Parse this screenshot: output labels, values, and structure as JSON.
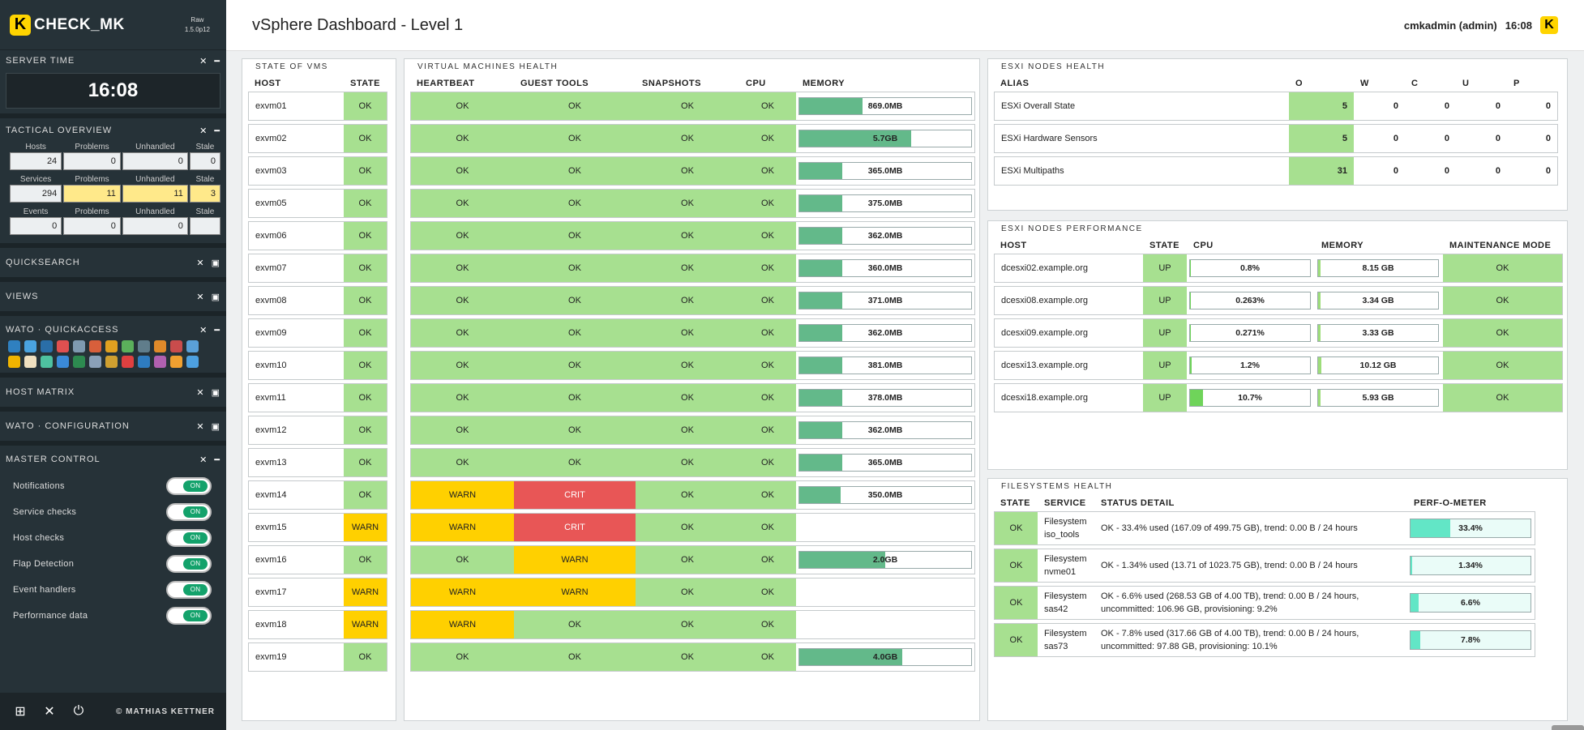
{
  "sidebar": {
    "logo_text": "CHECK_MK",
    "logo_letter": "K",
    "edition": "Raw",
    "version": "1.5.0p12",
    "server_time": {
      "title": "SERVER TIME",
      "value": "16:08"
    },
    "tactical": {
      "title": "TACTICAL OVERVIEW",
      "rows": [
        {
          "headers": [
            "Hosts",
            "Problems",
            "Unhandled",
            "Stale"
          ],
          "values": [
            "24",
            "0",
            "0",
            "0"
          ],
          "warn": [
            false,
            false,
            false,
            false
          ]
        },
        {
          "headers": [
            "Services",
            "Problems",
            "Unhandled",
            "Stale"
          ],
          "values": [
            "294",
            "11",
            "11",
            "3"
          ],
          "warn": [
            false,
            true,
            true,
            true
          ]
        },
        {
          "headers": [
            "Events",
            "Problems",
            "Unhandled",
            "Stale"
          ],
          "values": [
            "0",
            "0",
            "0",
            ""
          ],
          "warn": [
            false,
            false,
            false,
            false
          ]
        }
      ]
    },
    "quicksearch": "QUICKSEARCH",
    "views": "VIEWS",
    "wato_quickaccess": "WATO · QUICKACCESS",
    "host_matrix": "HOST MATRIX",
    "wato_configuration": "WATO · CONFIGURATION",
    "master_control": {
      "title": "MASTER CONTROL",
      "items": [
        {
          "label": "Notifications",
          "state": "ON"
        },
        {
          "label": "Service checks",
          "state": "ON"
        },
        {
          "label": "Host checks",
          "state": "ON"
        },
        {
          "label": "Flap Detection",
          "state": "ON"
        },
        {
          "label": "Event handlers",
          "state": "ON"
        },
        {
          "label": "Performance data",
          "state": "ON"
        }
      ]
    },
    "copyright": "© MATHIAS KETTNER"
  },
  "header": {
    "title": "vSphere Dashboard - Level 1",
    "user": "cmkadmin (admin)",
    "time": "16:08"
  },
  "state_of_vms": {
    "title": "STATE OF VMS",
    "columns": [
      "HOST",
      "STATE"
    ],
    "rows": [
      {
        "host": "exvm01",
        "state": "OK"
      },
      {
        "host": "exvm02",
        "state": "OK"
      },
      {
        "host": "exvm03",
        "state": "OK"
      },
      {
        "host": "exvm05",
        "state": "OK"
      },
      {
        "host": "exvm06",
        "state": "OK"
      },
      {
        "host": "exvm07",
        "state": "OK"
      },
      {
        "host": "exvm08",
        "state": "OK"
      },
      {
        "host": "exvm09",
        "state": "OK"
      },
      {
        "host": "exvm10",
        "state": "OK"
      },
      {
        "host": "exvm11",
        "state": "OK"
      },
      {
        "host": "exvm12",
        "state": "OK"
      },
      {
        "host": "exvm13",
        "state": "OK"
      },
      {
        "host": "exvm14",
        "state": "OK"
      },
      {
        "host": "exvm15",
        "state": "WARN"
      },
      {
        "host": "exvm16",
        "state": "OK"
      },
      {
        "host": "exvm17",
        "state": "WARN"
      },
      {
        "host": "exvm18",
        "state": "WARN"
      },
      {
        "host": "exvm19",
        "state": "OK"
      }
    ]
  },
  "vm_health": {
    "title": "VIRTUAL MACHINES HEALTH",
    "columns": [
      "HEARTBEAT",
      "GUEST TOOLS",
      "SNAPSHOTS",
      "CPU",
      "MEMORY"
    ],
    "rows": [
      {
        "heartbeat": "OK",
        "guest": "OK",
        "snapshots": "OK",
        "cpu": "OK",
        "memory": "869.0MB",
        "mem_fraction": 0.37
      },
      {
        "heartbeat": "OK",
        "guest": "OK",
        "snapshots": "OK",
        "cpu": "OK",
        "memory": "5.7GB",
        "mem_fraction": 0.65
      },
      {
        "heartbeat": "OK",
        "guest": "OK",
        "snapshots": "OK",
        "cpu": "OK",
        "memory": "365.0MB",
        "mem_fraction": 0.25
      },
      {
        "heartbeat": "OK",
        "guest": "OK",
        "snapshots": "OK",
        "cpu": "OK",
        "memory": "375.0MB",
        "mem_fraction": 0.25
      },
      {
        "heartbeat": "OK",
        "guest": "OK",
        "snapshots": "OK",
        "cpu": "OK",
        "memory": "362.0MB",
        "mem_fraction": 0.25
      },
      {
        "heartbeat": "OK",
        "guest": "OK",
        "snapshots": "OK",
        "cpu": "OK",
        "memory": "360.0MB",
        "mem_fraction": 0.25
      },
      {
        "heartbeat": "OK",
        "guest": "OK",
        "snapshots": "OK",
        "cpu": "OK",
        "memory": "371.0MB",
        "mem_fraction": 0.25
      },
      {
        "heartbeat": "OK",
        "guest": "OK",
        "snapshots": "OK",
        "cpu": "OK",
        "memory": "362.0MB",
        "mem_fraction": 0.25
      },
      {
        "heartbeat": "OK",
        "guest": "OK",
        "snapshots": "OK",
        "cpu": "OK",
        "memory": "381.0MB",
        "mem_fraction": 0.25
      },
      {
        "heartbeat": "OK",
        "guest": "OK",
        "snapshots": "OK",
        "cpu": "OK",
        "memory": "378.0MB",
        "mem_fraction": 0.25
      },
      {
        "heartbeat": "OK",
        "guest": "OK",
        "snapshots": "OK",
        "cpu": "OK",
        "memory": "362.0MB",
        "mem_fraction": 0.25
      },
      {
        "heartbeat": "OK",
        "guest": "OK",
        "snapshots": "OK",
        "cpu": "OK",
        "memory": "365.0MB",
        "mem_fraction": 0.25
      },
      {
        "heartbeat": "WARN",
        "guest": "CRIT",
        "snapshots": "OK",
        "cpu": "OK",
        "memory": "350.0MB",
        "mem_fraction": 0.24
      },
      {
        "heartbeat": "WARN",
        "guest": "CRIT",
        "snapshots": "OK",
        "cpu": "OK",
        "memory": "",
        "mem_fraction": 0
      },
      {
        "heartbeat": "OK",
        "guest": "WARN",
        "snapshots": "OK",
        "cpu": "OK",
        "memory": "2.0GB",
        "mem_fraction": 0.5
      },
      {
        "heartbeat": "WARN",
        "guest": "WARN",
        "snapshots": "OK",
        "cpu": "OK",
        "memory": "",
        "mem_fraction": 0
      },
      {
        "heartbeat": "WARN",
        "guest": "OK",
        "snapshots": "OK",
        "cpu": "OK",
        "memory": "",
        "mem_fraction": 0
      },
      {
        "heartbeat": "OK",
        "guest": "OK",
        "snapshots": "OK",
        "cpu": "OK",
        "memory": "4.0GB",
        "mem_fraction": 0.6
      }
    ]
  },
  "esxi_health": {
    "title": "ESXI NODES HEALTH",
    "columns": [
      "ALIAS",
      "O",
      "W",
      "C",
      "U",
      "P"
    ],
    "rows": [
      {
        "alias": "ESXi Overall State",
        "o": "5",
        "w": "0",
        "c": "0",
        "u": "0",
        "p": "0"
      },
      {
        "alias": "ESXi Hardware Sensors",
        "o": "5",
        "w": "0",
        "c": "0",
        "u": "0",
        "p": "0"
      },
      {
        "alias": "ESXi Multipaths",
        "o": "31",
        "w": "0",
        "c": "0",
        "u": "0",
        "p": "0"
      }
    ]
  },
  "esxi_perf": {
    "title": "ESXI NODES PERFORMANCE",
    "columns": [
      "HOST",
      "STATE",
      "CPU",
      "MEMORY",
      "MAINTENANCE MODE"
    ],
    "rows": [
      {
        "host": "dcesxi02.example.org",
        "state": "UP",
        "cpu": "0.8%",
        "cpu_fraction": 0.008,
        "memory": "8.15 GB",
        "mem_fraction": 0.02,
        "maint": "OK"
      },
      {
        "host": "dcesxi08.example.org",
        "state": "UP",
        "cpu": "0.263%",
        "cpu_fraction": 0.003,
        "memory": "3.34 GB",
        "mem_fraction": 0.02,
        "maint": "OK"
      },
      {
        "host": "dcesxi09.example.org",
        "state": "UP",
        "cpu": "0.271%",
        "cpu_fraction": 0.003,
        "memory": "3.33 GB",
        "mem_fraction": 0.02,
        "maint": "OK"
      },
      {
        "host": "dcesxi13.example.org",
        "state": "UP",
        "cpu": "1.2%",
        "cpu_fraction": 0.012,
        "memory": "10.12 GB",
        "mem_fraction": 0.03,
        "maint": "OK"
      },
      {
        "host": "dcesxi18.example.org",
        "state": "UP",
        "cpu": "10.7%",
        "cpu_fraction": 0.107,
        "memory": "5.93 GB",
        "mem_fraction": 0.02,
        "maint": "OK"
      }
    ]
  },
  "fs_health": {
    "title": "FILESYSTEMS HEALTH",
    "columns": [
      "STATE",
      "SERVICE",
      "STATUS DETAIL",
      "PERF-O-METER"
    ],
    "rows": [
      {
        "state": "OK",
        "service_line1": "Filesystem",
        "service_line2": "iso_tools",
        "detail_line1": "OK - 33.4% used (167.09 of 499.75 GB), trend: 0.00 B / 24 hours",
        "detail_line2": "",
        "perf": "33.4%",
        "perf_fraction": 0.334
      },
      {
        "state": "OK",
        "service_line1": "Filesystem",
        "service_line2": "nvme01",
        "detail_line1": "OK - 1.34% used (13.71 of 1023.75 GB), trend: 0.00 B / 24 hours",
        "detail_line2": "",
        "perf": "1.34%",
        "perf_fraction": 0.0134
      },
      {
        "state": "OK",
        "service_line1": "Filesystem",
        "service_line2": "sas42",
        "detail_line1": "OK - 6.6% used (268.53 GB of 4.00 TB), trend: 0.00 B / 24 hours,",
        "detail_line2": "uncommitted: 106.96 GB, provisioning: 9.2%",
        "perf": "6.6%",
        "perf_fraction": 0.066
      },
      {
        "state": "OK",
        "service_line1": "Filesystem",
        "service_line2": "sas73",
        "detail_line1": "OK - 7.8% used (317.66 GB of 4.00 TB), trend: 0.00 B / 24 hours,",
        "detail_line2": "uncommitted: 97.88 GB, provisioning: 10.1%",
        "perf": "7.8%",
        "perf_fraction": 0.078
      }
    ]
  }
}
